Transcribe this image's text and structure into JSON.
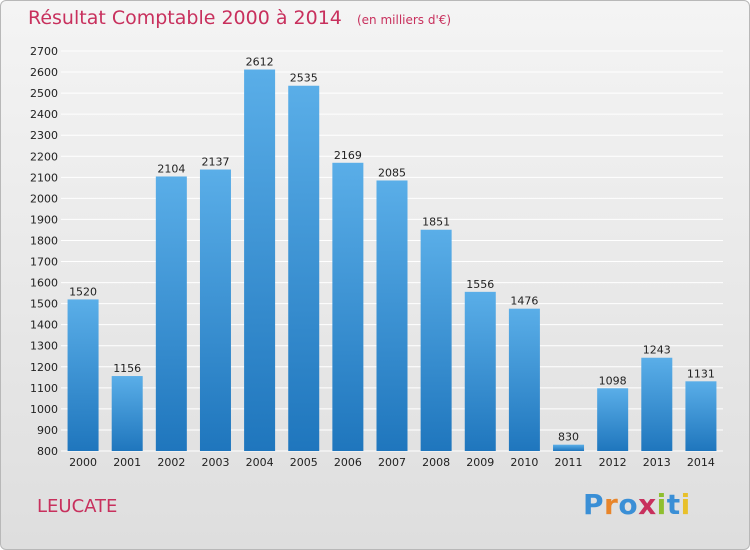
{
  "header": {
    "title": "Résultat Comptable 2000 à 2014",
    "subtitle": "(en milliers d'€)"
  },
  "commune": "LEUCATE",
  "logo": {
    "text": "Proxiti",
    "letter_colors": [
      "#3a8fd6",
      "#e8852a",
      "#3a8fd6",
      "#c8305d",
      "#8fbf2f",
      "#3a8fd6",
      "#e8c02a"
    ]
  },
  "colors": {
    "accent": "#c8305d",
    "bar_top": "#5aaee8",
    "bar_bottom": "#1f76bd",
    "grid": "#ffffff",
    "axis_text": "#222222"
  },
  "chart_data": {
    "type": "bar",
    "categories": [
      "2000",
      "2001",
      "2002",
      "2003",
      "2004",
      "2005",
      "2006",
      "2007",
      "2008",
      "2009",
      "2010",
      "2011",
      "2012",
      "2013",
      "2014"
    ],
    "values": [
      1520,
      1156,
      2104,
      2137,
      2612,
      2535,
      2169,
      2085,
      1851,
      1556,
      1476,
      830,
      1098,
      1243,
      1131
    ],
    "data_labels": [
      "1520",
      "1156",
      "2104",
      "2137",
      "2612",
      "2535",
      "2169",
      "2085",
      "1851",
      "1556",
      "1476",
      "830",
      "1098",
      "1243",
      "1131"
    ],
    "ylim": [
      800,
      2700
    ],
    "y_ticks": [
      800,
      900,
      1000,
      1100,
      1200,
      1300,
      1400,
      1500,
      1600,
      1700,
      1800,
      1900,
      2000,
      2100,
      2200,
      2300,
      2400,
      2500,
      2600,
      2700
    ],
    "grid": true,
    "xlabel": "",
    "ylabel": ""
  }
}
